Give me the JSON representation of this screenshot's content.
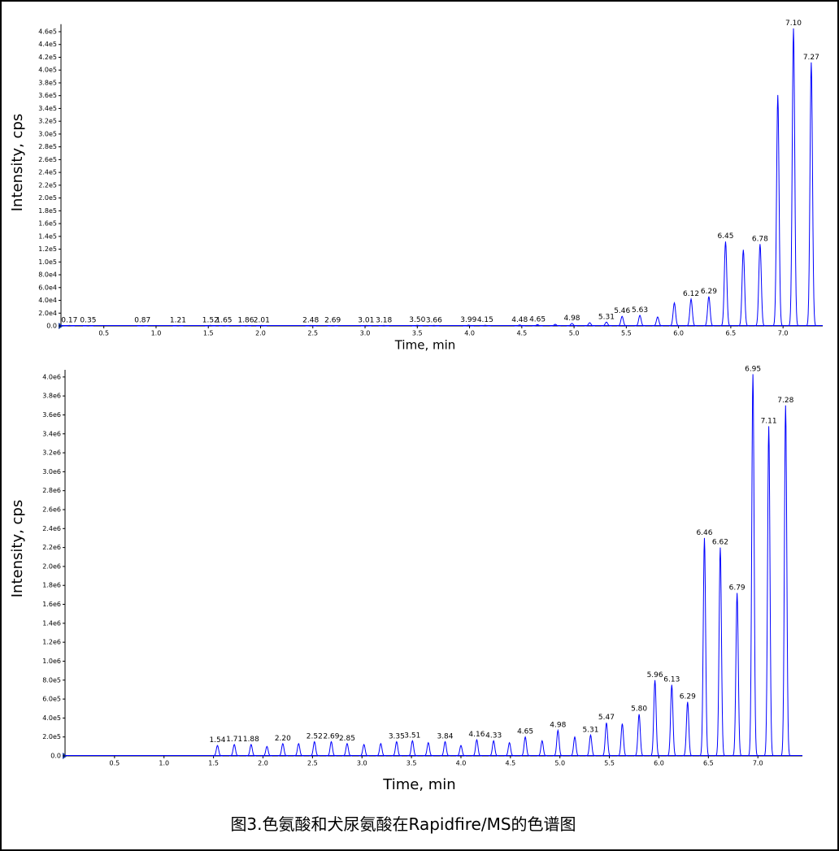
{
  "caption": "图3.色氨酸和犬尿氨酸在Rapidfire/MS的色谱图",
  "chart_data": [
    {
      "type": "line",
      "xlabel": "Time, min",
      "ylabel": "Intensity, cps",
      "color": "#0000ff",
      "xlim": [
        0.09,
        7.38
      ],
      "ylim": [
        0,
        468000
      ],
      "xticks": [
        0.5,
        {
          "value": 1,
          "label": "1.0"
        },
        1.5,
        {
          "value": 2,
          "label": "2.0"
        },
        2.5,
        {
          "value": 3,
          "label": "3.0"
        },
        3.5,
        {
          "value": 4,
          "label": "4.0"
        },
        4.5,
        {
          "value": 5,
          "label": "5.0"
        },
        5.5,
        {
          "value": 6,
          "label": "6.0"
        },
        6.5,
        {
          "value": 7,
          "label": "7.0"
        }
      ],
      "yticks": [
        {
          "value": 0,
          "label": "0.0"
        },
        {
          "value": 20000,
          "label": "2.0e4"
        },
        {
          "value": 40000,
          "label": "4.0e4"
        },
        {
          "value": 60000,
          "label": "6.0e4"
        },
        {
          "value": 80000,
          "label": "8.0e4"
        },
        {
          "value": 100000,
          "label": "1.0e5"
        },
        {
          "value": 120000,
          "label": "1.2e5"
        },
        {
          "value": 140000,
          "label": "1.4e5"
        },
        {
          "value": 160000,
          "label": "1.6e5"
        },
        {
          "value": 180000,
          "label": "1.8e5"
        },
        {
          "value": 200000,
          "label": "2.0e5"
        },
        {
          "value": 220000,
          "label": "2.2e5"
        },
        {
          "value": 240000,
          "label": "2.4e5"
        },
        {
          "value": 260000,
          "label": "2.6e5"
        },
        {
          "value": 280000,
          "label": "2.8e5"
        },
        {
          "value": 300000,
          "label": "3.0e5"
        },
        {
          "value": 320000,
          "label": "3.2e5"
        },
        {
          "value": 340000,
          "label": "3.4e5"
        },
        {
          "value": 360000,
          "label": "3.6e5"
        },
        {
          "value": 380000,
          "label": "3.8e5"
        },
        {
          "value": 400000,
          "label": "4.0e5"
        },
        {
          "value": 420000,
          "label": "4.2e5"
        },
        {
          "value": 440000,
          "label": "4.4e5"
        },
        {
          "value": 460000,
          "label": "4.6e5"
        }
      ],
      "x": [
        0.17,
        0.35,
        0.87,
        1.21,
        1.52,
        1.65,
        1.86,
        2.01,
        2.48,
        2.69,
        3.01,
        3.18,
        3.5,
        3.66,
        3.99,
        4.15,
        4.48,
        4.65,
        4.82,
        4.98,
        5.15,
        5.31,
        5.46,
        5.63,
        5.8,
        5.96,
        6.12,
        6.29,
        6.45,
        6.62,
        6.78,
        6.95,
        7.1,
        7.27
      ],
      "values": [
        800,
        600,
        500,
        600,
        900,
        700,
        600,
        900,
        800,
        700,
        800,
        900,
        1000,
        900,
        1200,
        1100,
        1500,
        2000,
        2500,
        4000,
        5000,
        6000,
        15000,
        16500,
        14000,
        36000,
        42000,
        46000,
        132000,
        119000,
        128000,
        361000,
        465000,
        412000
      ],
      "peak_labels": [
        "0.17",
        "0.35",
        "0.87",
        "1.21",
        "1.52",
        "1.65",
        "1.86",
        "2.01",
        "2.48",
        "2.69",
        "3.01",
        "3.18",
        "3.50",
        "3.66",
        "3.99",
        "4.15",
        "4.48",
        "4.65",
        null,
        "4.98",
        null,
        "5.31",
        "5.46",
        "5.63",
        null,
        null,
        "6.12",
        "6.29",
        "6.45",
        null,
        "6.78",
        null,
        "7.10",
        "7.27"
      ]
    },
    {
      "type": "line",
      "xlabel": "Time, min",
      "ylabel": "Intensity, cps",
      "color": "#0000ff",
      "xlim": [
        0,
        7.45
      ],
      "ylim": [
        0,
        4050000
      ],
      "xticks": [
        0.5,
        {
          "value": 1,
          "label": "1.0"
        },
        1.5,
        {
          "value": 2,
          "label": "2.0"
        },
        2.5,
        {
          "value": 3,
          "label": "3.0"
        },
        3.5,
        {
          "value": 4,
          "label": "4.0"
        },
        4.5,
        {
          "value": 5,
          "label": "5.0"
        },
        5.5,
        {
          "value": 6,
          "label": "6.0"
        },
        6.5,
        {
          "value": 7,
          "label": "7.0"
        }
      ],
      "yticks": [
        {
          "value": 0,
          "label": "0.0"
        },
        {
          "value": 200000,
          "label": "2.0e5"
        },
        {
          "value": 400000,
          "label": "4.0e5"
        },
        {
          "value": 600000,
          "label": "6.0e5"
        },
        {
          "value": 800000,
          "label": "8.0e5"
        },
        {
          "value": 1000000,
          "label": "1.0e6"
        },
        {
          "value": 1200000,
          "label": "1.2e6"
        },
        {
          "value": 1400000,
          "label": "1.4e6"
        },
        {
          "value": 1600000,
          "label": "1.6e6"
        },
        {
          "value": 1800000,
          "label": "1.8e6"
        },
        {
          "value": 2000000,
          "label": "2.0e6"
        },
        {
          "value": 2200000,
          "label": "2.2e6"
        },
        {
          "value": 2400000,
          "label": "2.4e6"
        },
        {
          "value": 2600000,
          "label": "2.6e6"
        },
        {
          "value": 2800000,
          "label": "2.8e6"
        },
        {
          "value": 3000000,
          "label": "3.0e6"
        },
        {
          "value": 3200000,
          "label": "3.2e6"
        },
        {
          "value": 3400000,
          "label": "3.4e6"
        },
        {
          "value": 3600000,
          "label": "3.6e6"
        },
        {
          "value": 3800000,
          "label": "3.8e6"
        },
        {
          "value": 4000000,
          "label": "4.0e6"
        }
      ],
      "x": [
        1.54,
        1.71,
        1.88,
        2.04,
        2.2,
        2.36,
        2.52,
        2.69,
        2.85,
        3.02,
        3.19,
        3.35,
        3.51,
        3.67,
        3.84,
        4.0,
        4.16,
        4.33,
        4.49,
        4.65,
        4.82,
        4.98,
        5.15,
        5.31,
        5.47,
        5.63,
        5.8,
        5.96,
        6.13,
        6.29,
        6.46,
        6.62,
        6.79,
        6.95,
        7.11,
        7.28
      ],
      "values": [
        110000,
        120000,
        120000,
        100000,
        130000,
        130000,
        150000,
        150000,
        130000,
        120000,
        130000,
        150000,
        160000,
        140000,
        150000,
        110000,
        170000,
        160000,
        140000,
        200000,
        160000,
        270000,
        200000,
        220000,
        350000,
        340000,
        440000,
        800000,
        750000,
        570000,
        2300000,
        2200000,
        1720000,
        4030000,
        3480000,
        3700000
      ],
      "peak_labels": [
        "1.54",
        "1.71",
        "1.88",
        null,
        "2.20",
        null,
        "2.52",
        "2.69",
        "2.85",
        null,
        null,
        "3.35",
        "3.51",
        null,
        "3.84",
        null,
        "4.16",
        "4.33",
        null,
        "4.65",
        null,
        "4.98",
        null,
        "5.31",
        "5.47",
        null,
        "5.80",
        "5.96",
        "6.13",
        "6.29",
        "6.46",
        "6.62",
        "6.79",
        "6.95",
        "7.11",
        "7.28"
      ]
    }
  ]
}
